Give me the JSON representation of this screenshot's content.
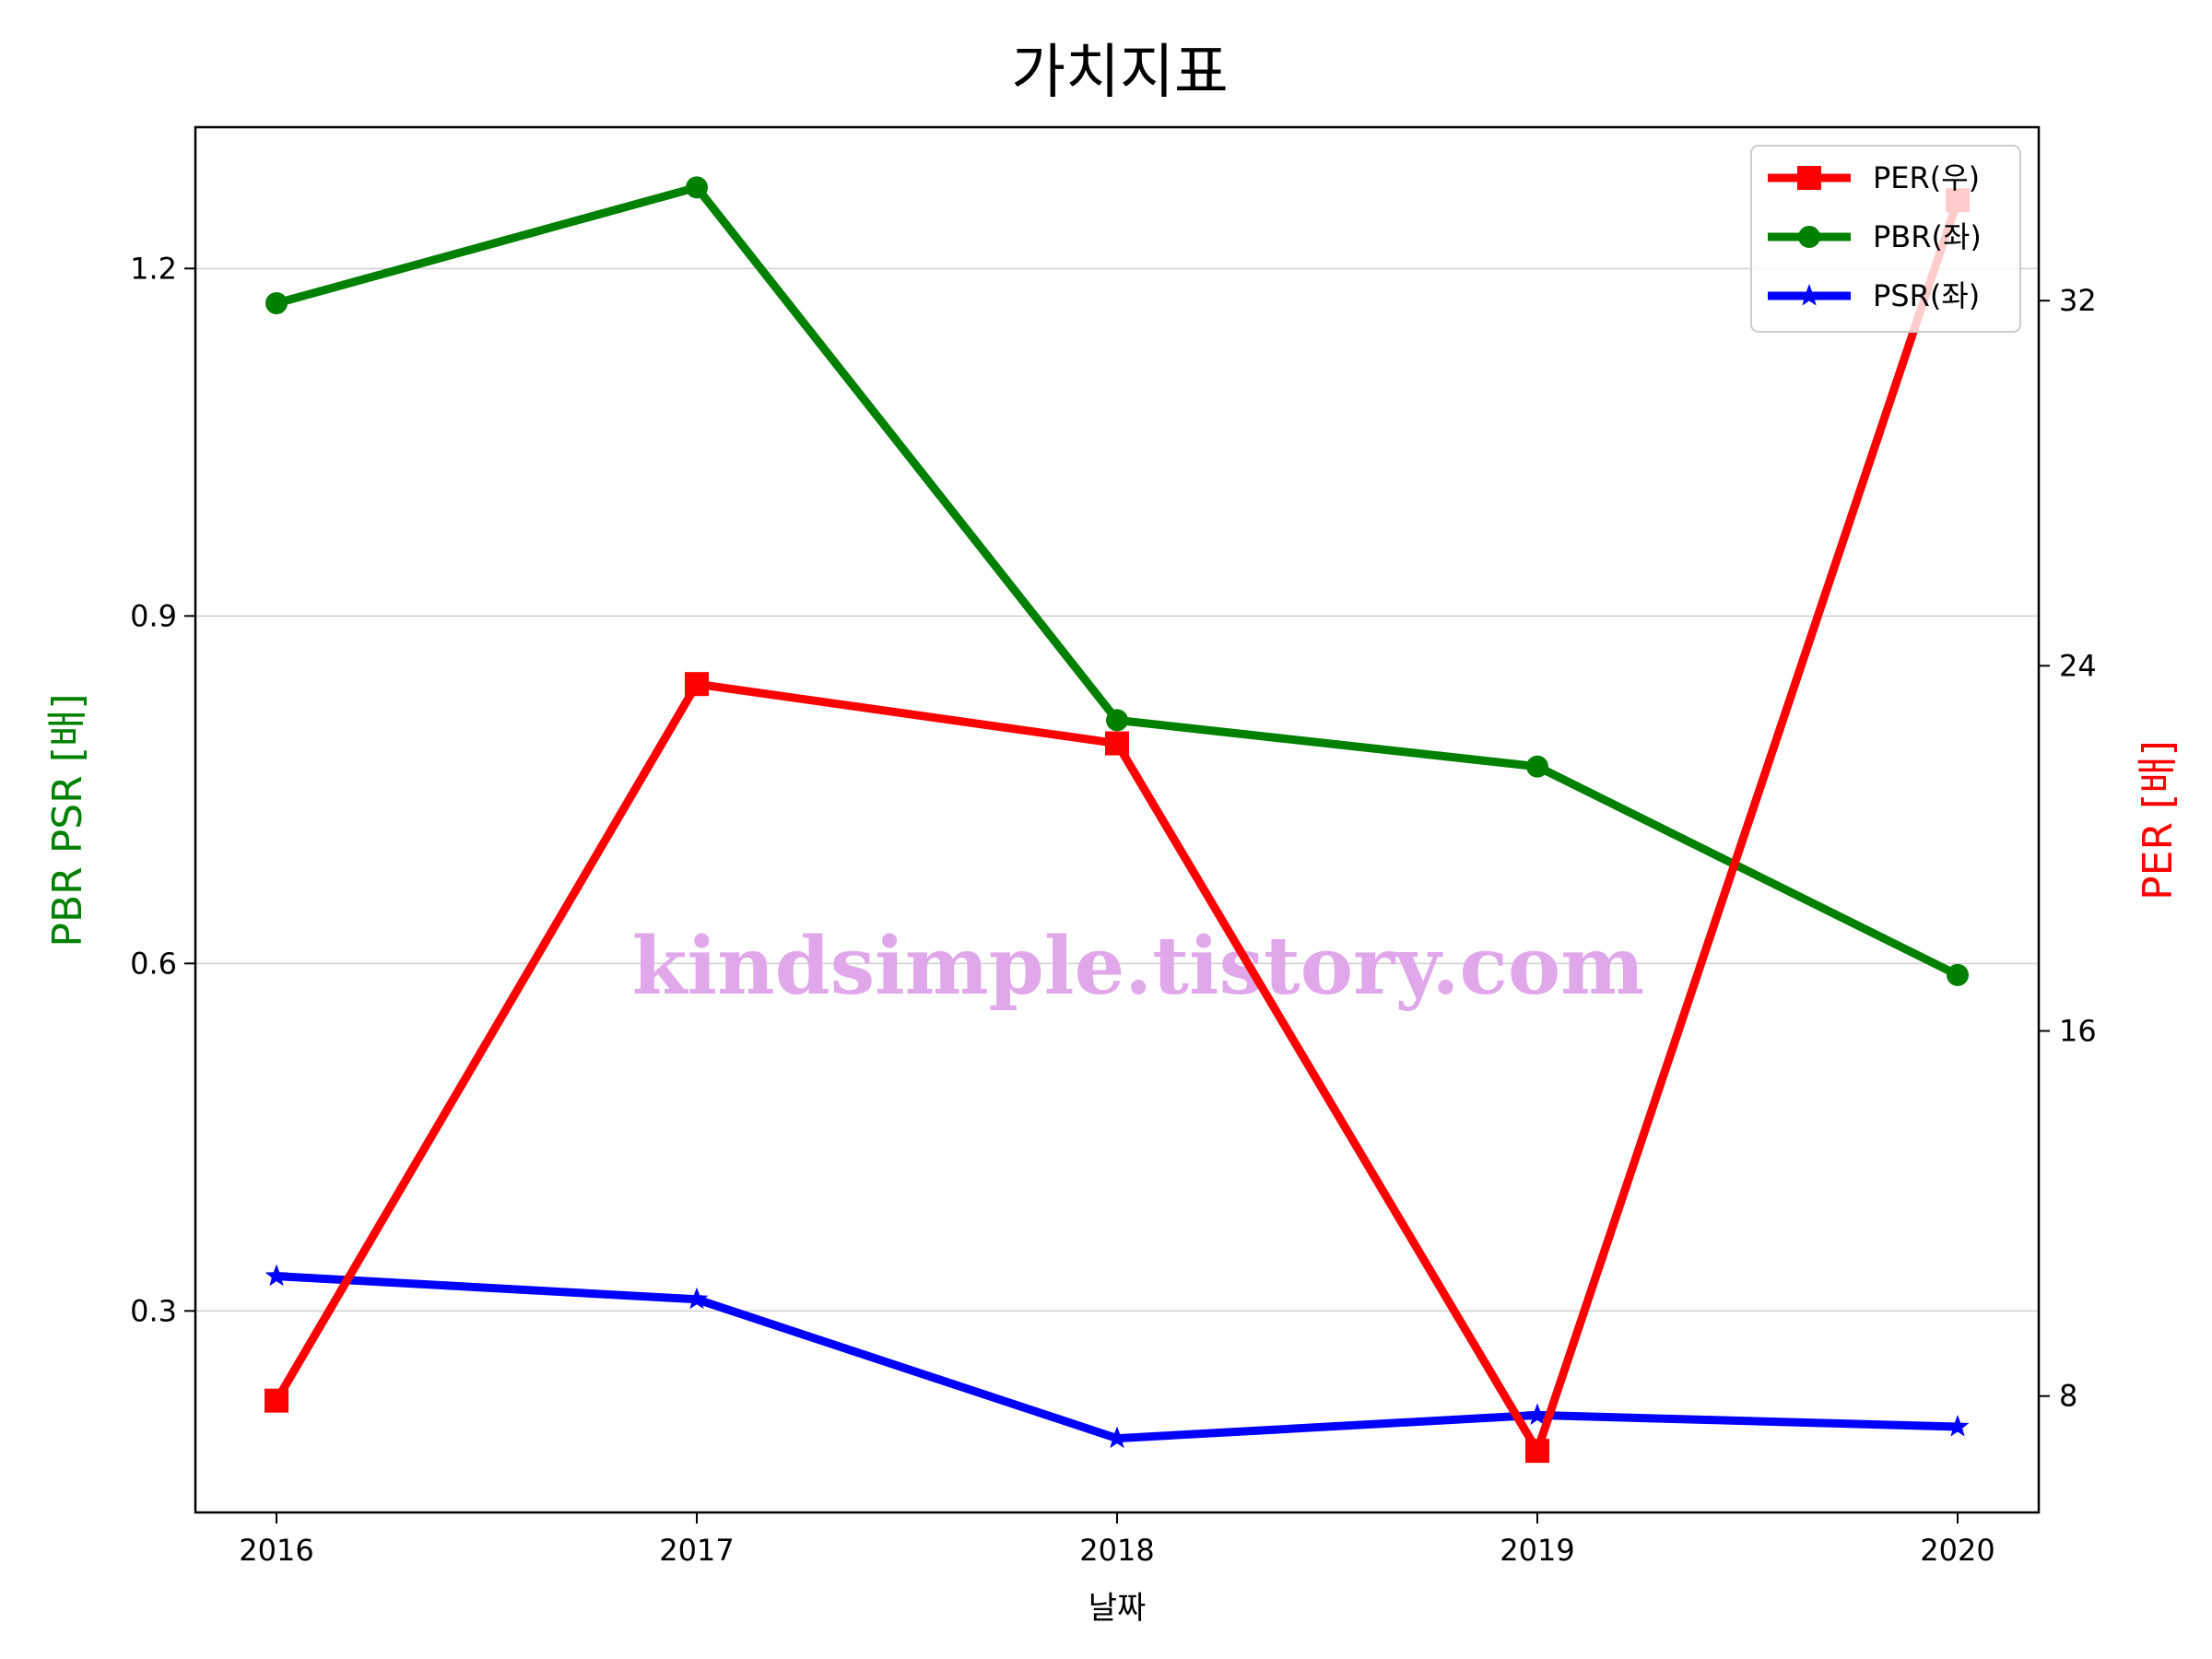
{
  "chart_data": {
    "type": "line",
    "title": "가치지표",
    "xlabel": "날짜",
    "ylabel_left": "PBR PSR [배]",
    "ylabel_right": "PER [배]",
    "categories": [
      "2016",
      "2017",
      "2018",
      "2019",
      "2020"
    ],
    "ylim_left": [
      0.126,
      1.322
    ],
    "yticks_left": [
      "0.3",
      "0.6",
      "0.9",
      "1.2"
    ],
    "ylim_right": [
      5.45,
      35.8
    ],
    "yticks_right": [
      "8",
      "16",
      "24",
      "32"
    ],
    "grid": "horizontal (left axis)",
    "legend_position": "top-right",
    "series": [
      {
        "name": "PER(우)",
        "axis": "right",
        "color": "#ff0000",
        "marker": "square",
        "values": [
          7.9,
          23.6,
          22.3,
          6.8,
          34.2
        ]
      },
      {
        "name": "PBR(좌)",
        "axis": "left",
        "color": "#008000",
        "marker": "circle",
        "values": [
          1.17,
          1.27,
          0.81,
          0.77,
          0.59
        ]
      },
      {
        "name": "PSR(좌)",
        "axis": "left",
        "color": "#0000ff",
        "marker": "star",
        "values": [
          0.33,
          0.31,
          0.19,
          0.21,
          0.2
        ]
      }
    ],
    "watermark": {
      "text": "kindsimple.tistory.com",
      "color": "#e0a8ea"
    }
  }
}
